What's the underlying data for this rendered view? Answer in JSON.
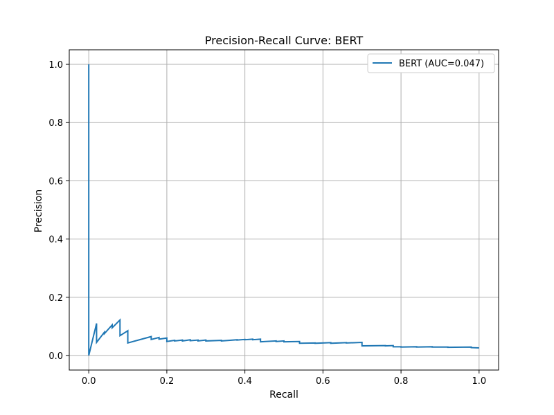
{
  "chart_data": {
    "type": "line",
    "title": "Precision-Recall Curve: BERT",
    "xlabel": "Recall",
    "ylabel": "Precision",
    "xlim": [
      -0.05,
      1.05
    ],
    "ylim": [
      -0.05,
      1.05
    ],
    "xticks": [
      0.0,
      0.2,
      0.4,
      0.6,
      0.8,
      1.0
    ],
    "xtick_labels": [
      "0.0",
      "0.2",
      "0.4",
      "0.6",
      "0.8",
      "1.0"
    ],
    "yticks": [
      0.0,
      0.2,
      0.4,
      0.6,
      0.8,
      1.0
    ],
    "ytick_labels": [
      "0.0",
      "0.2",
      "0.4",
      "0.6",
      "0.8",
      "1.0"
    ],
    "grid": true,
    "legend_position": "top-right",
    "series": [
      {
        "name": "BERT (AUC=0.047)",
        "color": "#1f77b4",
        "x": [
          0.0,
          0.0,
          0.0,
          0.02,
          0.02,
          0.04,
          0.04,
          0.06,
          0.06,
          0.08,
          0.08,
          0.1,
          0.1,
          0.16,
          0.16,
          0.18,
          0.18,
          0.2,
          0.2,
          0.22,
          0.22,
          0.24,
          0.24,
          0.26,
          0.26,
          0.28,
          0.28,
          0.3,
          0.3,
          0.34,
          0.34,
          0.38,
          0.38,
          0.4,
          0.4,
          0.42,
          0.42,
          0.44,
          0.44,
          0.48,
          0.48,
          0.5,
          0.5,
          0.54,
          0.54,
          0.58,
          0.58,
          0.62,
          0.62,
          0.66,
          0.66,
          0.7,
          0.7,
          0.76,
          0.76,
          0.78,
          0.78,
          0.8,
          0.8,
          0.84,
          0.84,
          0.88,
          0.88,
          0.92,
          0.92,
          0.98,
          0.98,
          1.0
        ],
        "y": [
          1.0,
          0.0,
          0.0,
          0.11,
          0.045,
          0.08,
          0.075,
          0.105,
          0.095,
          0.122,
          0.068,
          0.085,
          0.043,
          0.065,
          0.055,
          0.062,
          0.056,
          0.06,
          0.048,
          0.052,
          0.05,
          0.053,
          0.05,
          0.054,
          0.051,
          0.053,
          0.05,
          0.053,
          0.05,
          0.052,
          0.05,
          0.054,
          0.053,
          0.055,
          0.054,
          0.056,
          0.054,
          0.056,
          0.047,
          0.05,
          0.048,
          0.05,
          0.047,
          0.048,
          0.042,
          0.043,
          0.042,
          0.044,
          0.042,
          0.044,
          0.043,
          0.045,
          0.033,
          0.034,
          0.033,
          0.034,
          0.03,
          0.03,
          0.029,
          0.03,
          0.029,
          0.03,
          0.029,
          0.029,
          0.028,
          0.029,
          0.027,
          0.026
        ]
      }
    ]
  }
}
